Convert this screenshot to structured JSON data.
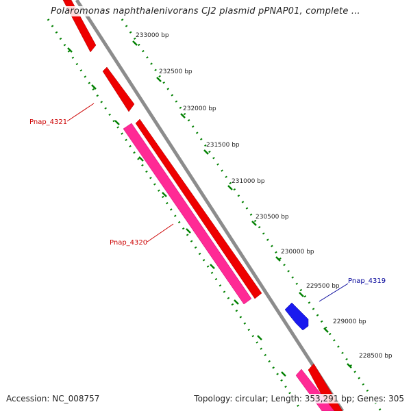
{
  "title": "Polaromonas naphthalenivorans CJ2 plasmid pPNAP01, complete ...",
  "accession": "Accession: NC_008757",
  "summary": "Topology: circular; Length: 353,291 bp; Genes: 305",
  "scale": {
    "labels": [
      "233000 bp",
      "232500 bp",
      "232000 bp",
      "231500 bp",
      "231000 bp",
      "230500 bp",
      "230000 bp",
      "229500 bp",
      "229000 bp",
      "228500 bp"
    ]
  },
  "genes": [
    {
      "name": "Pnap_4321",
      "color": "#cc0000"
    },
    {
      "name": "Pnap_4320",
      "color": "#cc0000"
    },
    {
      "name": "Pnap_4319",
      "color": "#000099"
    }
  ],
  "colors": {
    "backbone": "#8c8c8c",
    "forward_gene": "#ff0000",
    "rna_gene": "#ff1a8c",
    "reverse_gene": "#0000ff",
    "tick": "#008000"
  }
}
